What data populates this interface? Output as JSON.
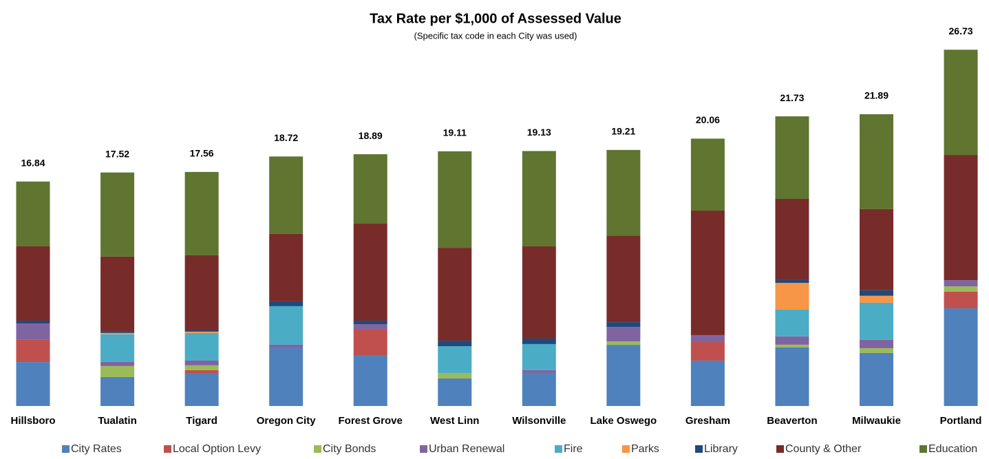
{
  "chart_data": {
    "type": "stacked_bar",
    "title": "Tax Rate per $1,000 of Assessed Value",
    "subtitle": "(Specific tax code in each City was used)",
    "categories": [
      "Hillsboro",
      "Tualatin",
      "Tigard",
      "Oregon City",
      "Forest Grove",
      "West Linn",
      "Wilsonville",
      "Lake Oswego",
      "Gresham",
      "Beaverton",
      "Milwaukie",
      "Portland"
    ],
    "totals": [
      16.84,
      17.52,
      17.56,
      18.72,
      18.89,
      19.11,
      19.13,
      19.21,
      20.06,
      21.73,
      21.89,
      26.73
    ],
    "series": [
      {
        "name": "City Rates",
        "color": "#4f81bd",
        "values": [
          3.3,
          2.17,
          2.43,
          4.34,
          3.82,
          2.07,
          2.48,
          4.59,
          3.41,
          4.39,
          3.98,
          7.33
        ]
      },
      {
        "name": "Local Option Levy",
        "color": "#c0504d",
        "values": [
          1.7,
          0,
          0.26,
          0,
          1.96,
          0,
          0,
          0,
          1.39,
          0,
          0,
          1.24
        ]
      },
      {
        "name": "City Bonds",
        "color": "#9bbb59",
        "values": [
          0,
          0.83,
          0.36,
          0,
          0,
          0.41,
          0,
          0.26,
          0,
          0.21,
          0.36,
          0.41
        ]
      },
      {
        "name": "Urban Renewal",
        "color": "#8064a2",
        "values": [
          1.19,
          0.31,
          0.36,
          0.26,
          0.36,
          0,
          0.21,
          1.08,
          0.52,
          0.62,
          0.62,
          0.46
        ]
      },
      {
        "name": "Fire",
        "color": "#4bacc6",
        "values": [
          0,
          2.07,
          2.07,
          2.89,
          0,
          2.01,
          1.96,
          0,
          0,
          2.01,
          2.79,
          0
        ]
      },
      {
        "name": "Parks",
        "color": "#f79646",
        "values": [
          0,
          0.1,
          0.1,
          0,
          0,
          0,
          0,
          0,
          0,
          2.01,
          0.52,
          0
        ]
      },
      {
        "name": "Library",
        "color": "#1f497d",
        "values": [
          0.21,
          0.1,
          0.1,
          0.36,
          0.26,
          0.41,
          0.41,
          0.36,
          0,
          0.21,
          0.41,
          0
        ]
      },
      {
        "name": "County & Other",
        "color": "#772c2a",
        "values": [
          5.58,
          5.63,
          5.63,
          5.06,
          7.28,
          6.97,
          6.92,
          6.5,
          9.34,
          6.09,
          6.09,
          9.4
        ]
      },
      {
        "name": "Education",
        "color": "#5f7530",
        "values": [
          4.86,
          6.31,
          6.25,
          5.81,
          5.21,
          7.24,
          7.15,
          6.42,
          5.4,
          6.19,
          7.12,
          7.89
        ]
      }
    ]
  }
}
